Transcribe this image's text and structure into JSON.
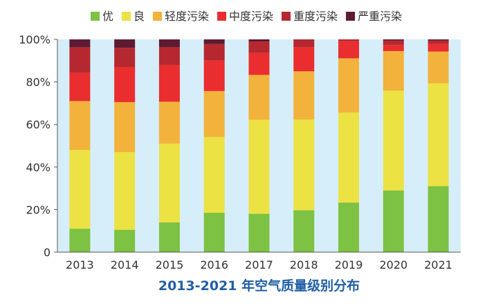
{
  "chart_data": {
    "type": "bar",
    "stacked": true,
    "title": "2013-2021 年空气质量级别分布",
    "xlabel": "",
    "ylabel": "",
    "categories": [
      "2013",
      "2014",
      "2015",
      "2016",
      "2017",
      "2018",
      "2019",
      "2020",
      "2021"
    ],
    "ylim": [
      0,
      100
    ],
    "yticks": [
      "0",
      "20%",
      "40%",
      "60%",
      "80%",
      "100%"
    ],
    "legend_position": "top",
    "grid": false,
    "plot_background": "#d6eef9",
    "series": [
      {
        "name": "优",
        "color": "#7dc242",
        "values": [
          11,
          10.5,
          14,
          18.5,
          18,
          19.7,
          23.3,
          29,
          31
        ]
      },
      {
        "name": "良",
        "color": "#ece244",
        "values": [
          37,
          36.5,
          37,
          35.6,
          44.2,
          42.6,
          42.3,
          46.9,
          48.3
        ]
      },
      {
        "name": "轻度污染",
        "color": "#f2b23b",
        "values": [
          23,
          23.5,
          19.7,
          21.6,
          21.1,
          22.7,
          25.5,
          18.6,
          15
        ]
      },
      {
        "name": "中度污染",
        "color": "#ea2d2e",
        "values": [
          13.3,
          16.5,
          17.3,
          14.3,
          10.3,
          11.3,
          8,
          2.8,
          3.5
        ]
      },
      {
        "name": "重度污染",
        "color": "#b5282f",
        "values": [
          12,
          9,
          8.3,
          7.8,
          5.4,
          3.7,
          0.9,
          2.2,
          1.7
        ]
      },
      {
        "name": "严重污染",
        "color": "#5e1a30",
        "values": [
          3.7,
          4,
          3.7,
          2.2,
          1,
          0,
          0,
          0.5,
          0.5
        ]
      }
    ]
  }
}
